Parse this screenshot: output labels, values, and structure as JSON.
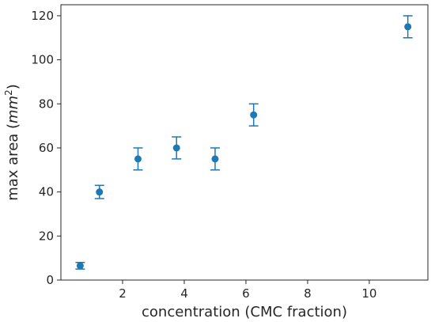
{
  "chart_data": {
    "type": "scatter",
    "xlabel": "concentration (CMC fraction)",
    "ylabel_main": "max area (",
    "ylabel_unit": "mm",
    "ylabel_exp": "2",
    "ylabel_close": ")",
    "xlim": [
      0.0,
      11.9
    ],
    "ylim": [
      0,
      125
    ],
    "xticks": [
      2,
      4,
      6,
      8,
      10
    ],
    "xtick_labels": [
      "2",
      "4",
      "6",
      "8",
      "10"
    ],
    "yticks": [
      0,
      20,
      40,
      60,
      80,
      100,
      120
    ],
    "ytick_labels": [
      "0",
      "20",
      "40",
      "60",
      "80",
      "100",
      "120"
    ],
    "grid": false,
    "color": "#1f77b4",
    "series": [
      {
        "x": [
          0.625,
          1.25,
          2.5,
          3.75,
          5.0,
          6.25,
          11.25
        ],
        "y": [
          6.5,
          40,
          55,
          60,
          55,
          75,
          115
        ],
        "yerr": [
          1.5,
          3,
          5,
          5,
          5,
          5,
          5
        ]
      }
    ]
  }
}
